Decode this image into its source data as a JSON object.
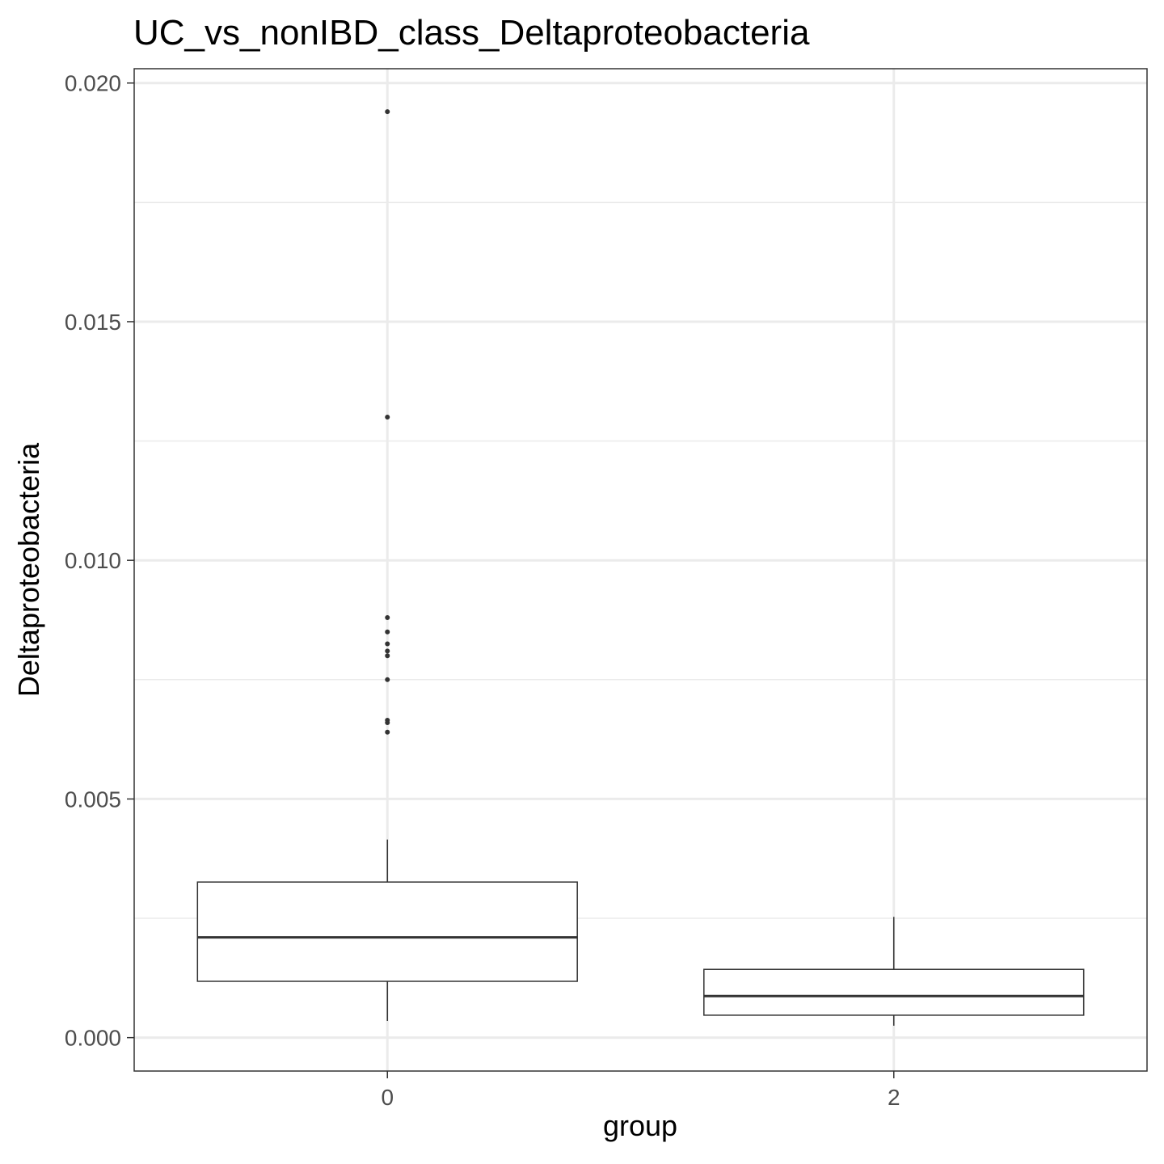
{
  "chart_data": {
    "type": "boxplot",
    "title": "UC_vs_nonIBD_class_Deltaproteobacteria",
    "xlabel": "group",
    "ylabel": "Deltaproteobacteria",
    "categories": [
      "0",
      "2"
    ],
    "ylim": [
      -0.0007,
      0.0203
    ],
    "yticks": [
      0.0,
      0.005,
      0.01,
      0.015,
      0.02
    ],
    "ytick_labels": [
      "0.000",
      "0.005",
      "0.010",
      "0.015",
      "0.020"
    ],
    "grid": true,
    "theme": "bw",
    "boxes": [
      {
        "group": "0",
        "whisker_low": 0.00035,
        "q1": 0.00118,
        "median": 0.0021,
        "q3": 0.00326,
        "whisker_high": 0.00415,
        "outliers": [
          0.0194,
          0.013,
          0.0088,
          0.0085,
          0.00825,
          0.0081,
          0.008,
          0.0075,
          0.00665,
          0.0066,
          0.0064
        ]
      },
      {
        "group": "2",
        "whisker_low": 0.00025,
        "q1": 0.00047,
        "median": 0.00087,
        "q3": 0.00143,
        "whisker_high": 0.00253,
        "outliers": []
      }
    ],
    "colors": {
      "box_fill": "#ffffff",
      "box_line": "#333333",
      "grid": "#ebebeb",
      "panel_border": "#333333",
      "point": "#333333"
    }
  }
}
